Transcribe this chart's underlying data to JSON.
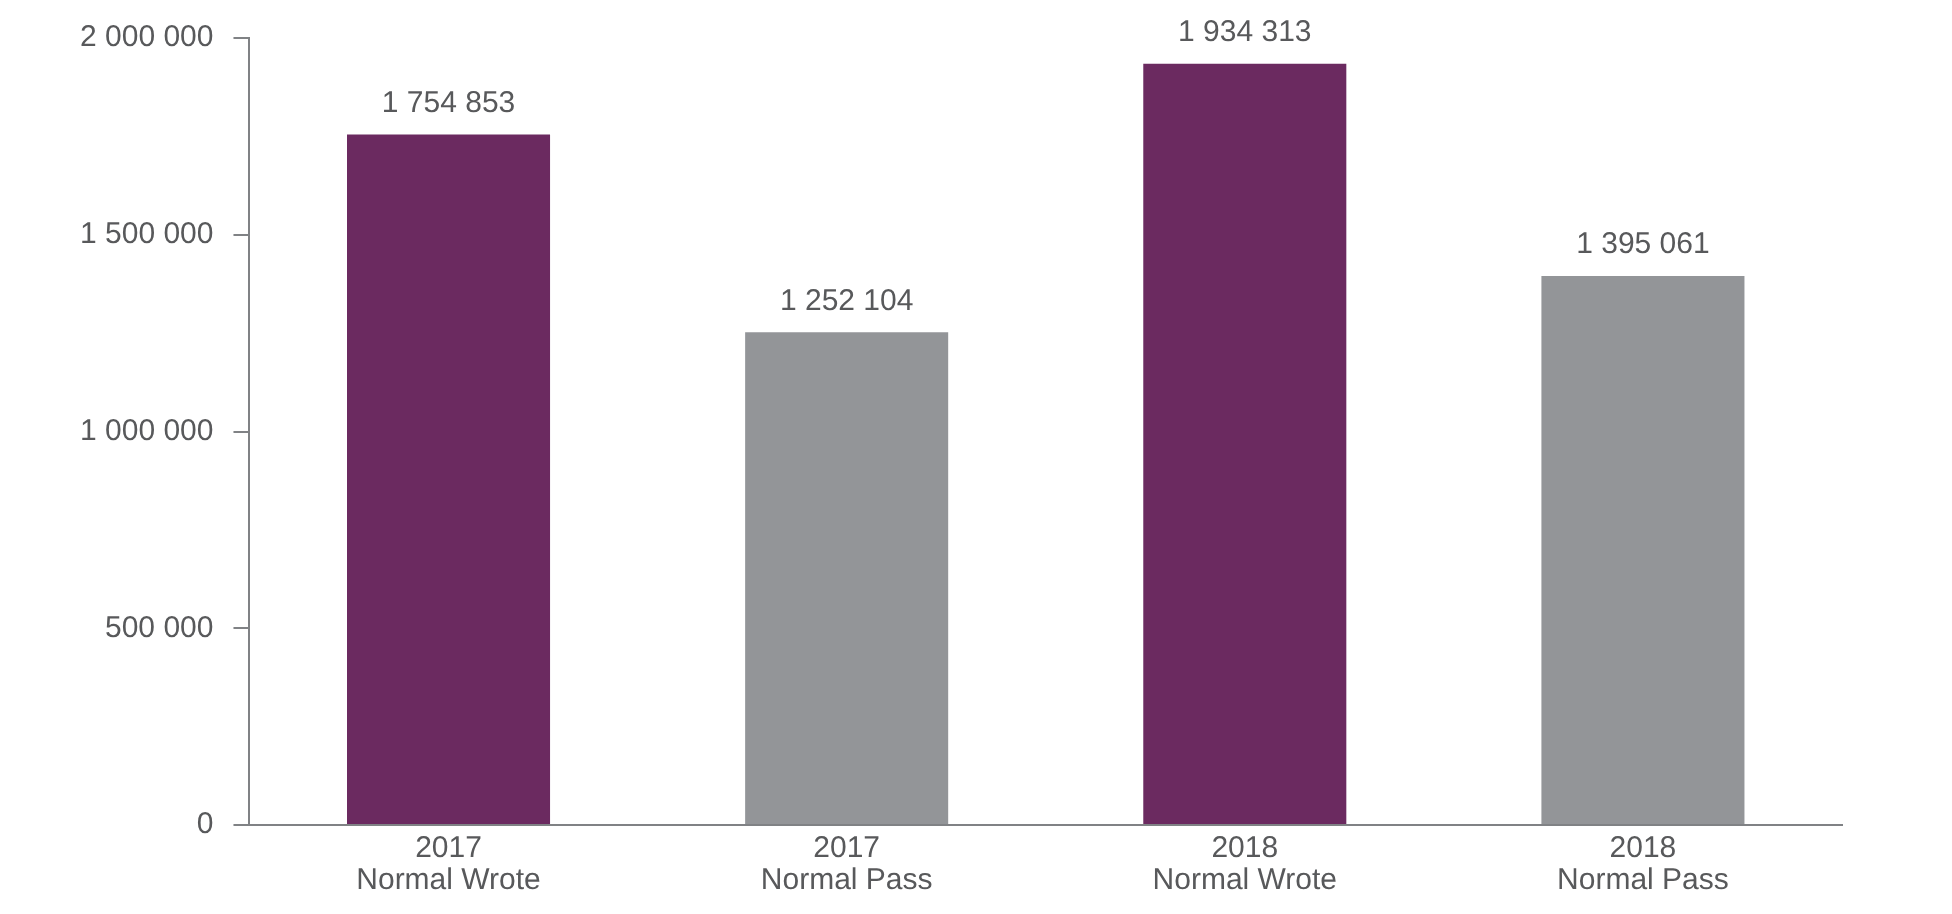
{
  "chart_data": {
    "type": "bar",
    "categories": [
      "2017\nNormal Wrote",
      "2017\nNormal Pass",
      "2018\nNormal Wrote",
      "2018\nNormal Pass"
    ],
    "values": [
      1754853,
      1252104,
      1934313,
      1395061
    ],
    "colors": [
      "#6b2a60",
      "#939598",
      "#6b2a60",
      "#939598"
    ],
    "value_labels": [
      "1 754 853",
      "1 252 104",
      "1 934 313",
      "1 395 061"
    ],
    "ylim": [
      0,
      2000000
    ],
    "yticks": [
      {
        "value": 0,
        "label": "0"
      },
      {
        "value": 500000,
        "label": "500 000"
      },
      {
        "value": 1000000,
        "label": "1 000 000"
      },
      {
        "value": 1500000,
        "label": "1 500 000"
      },
      {
        "value": 2000000,
        "label": "2 000 000"
      }
    ],
    "grid": false,
    "legend": false
  }
}
